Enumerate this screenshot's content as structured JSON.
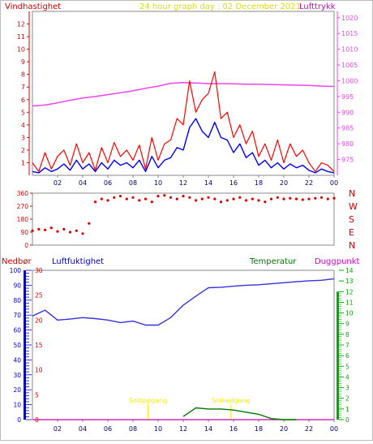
{
  "colors": {
    "wind": "#dd0000",
    "wind_gust": "#ff0000",
    "wind_avg": "#0000ee",
    "pressure": "#ee44ee",
    "direction": "#dd0000",
    "title": "#dddd00",
    "humidity": "#3333dd",
    "temperature": "#007700",
    "dewpoint": "#cc00cc",
    "precip": "#cc0000",
    "sun": "#eeee00",
    "precip_axis": "#0000dd",
    "temp_axis": "#00aa00",
    "frame": "#888888",
    "tick_text": "#000066",
    "direction_text": "#cc0000"
  },
  "header": {
    "wind_label": "Vindhastighet",
    "title": "24 hour graph day : 02 December 2021",
    "pressure_label": "Lufttrykk"
  },
  "lower_header": {
    "precip_label": "Nedbør",
    "humidity_label": "Luftfuktighet",
    "temperature_label": "Temperatur",
    "dewpoint_label": "Duggpunkt"
  },
  "chart_data": [
    {
      "type": "line",
      "panel": "wind_pressure",
      "x_ticks": [
        "02",
        "04",
        "06",
        "08",
        "10",
        "12",
        "14",
        "16",
        "18",
        "20",
        "22",
        "00"
      ],
      "x_range_hours": [
        0,
        24
      ],
      "y_left": {
        "label": "Vindhastighet",
        "ylim": [
          0,
          13
        ],
        "ticks": [
          1,
          2,
          3,
          4,
          5,
          6,
          7,
          8,
          9,
          10,
          11,
          12
        ]
      },
      "y_right": {
        "label": "Lufttrykk",
        "ylim": [
          970,
          1022
        ],
        "ticks": [
          975,
          980,
          985,
          990,
          995,
          1000,
          1005,
          1010,
          1015,
          1020
        ]
      },
      "series": [
        {
          "role": "gust",
          "x": [
            0,
            0.5,
            1,
            1.5,
            2,
            2.5,
            3,
            3.5,
            4,
            4.5,
            5,
            5.5,
            6,
            6.5,
            7,
            7.5,
            8,
            8.5,
            9,
            9.5,
            10,
            10.5,
            11,
            11.5,
            12,
            12.5,
            13,
            13.5,
            14,
            14.5,
            15,
            15.5,
            16,
            16.5,
            17,
            17.5,
            18,
            18.5,
            19,
            19.5,
            20,
            20.5,
            21,
            21.5,
            22,
            22.5,
            23,
            23.5,
            24
          ],
          "values": [
            1.0,
            0.3,
            1.8,
            0.5,
            1.5,
            2.0,
            0.8,
            2.5,
            1.0,
            1.8,
            0.4,
            2.2,
            1.0,
            2.6,
            1.5,
            2.0,
            1.2,
            2.4,
            0.5,
            3.0,
            1.2,
            2.5,
            2.8,
            4.5,
            4.0,
            7.5,
            5.0,
            6.0,
            6.5,
            8.2,
            4.5,
            5.0,
            3.0,
            4.0,
            2.5,
            3.5,
            1.5,
            2.5,
            1.2,
            2.8,
            1.0,
            2.5,
            1.5,
            2.0,
            1.0,
            0.3,
            1.0,
            0.8,
            0.3
          ]
        },
        {
          "role": "average",
          "x": [
            0,
            0.5,
            1,
            1.5,
            2,
            2.5,
            3,
            3.5,
            4,
            4.5,
            5,
            5.5,
            6,
            6.5,
            7,
            7.5,
            8,
            8.5,
            9,
            9.5,
            10,
            10.5,
            11,
            11.5,
            12,
            12.5,
            13,
            13.5,
            14,
            14.5,
            15,
            15.5,
            16,
            16.5,
            17,
            17.5,
            18,
            18.5,
            19,
            19.5,
            20,
            20.5,
            21,
            21.5,
            22,
            22.5,
            23,
            23.5,
            24
          ],
          "values": [
            0.3,
            0.2,
            0.6,
            0.3,
            0.5,
            0.9,
            0.4,
            1.2,
            0.5,
            0.9,
            0.3,
            1.0,
            0.5,
            1.2,
            0.8,
            1.0,
            0.6,
            1.2,
            0.3,
            1.5,
            0.6,
            1.2,
            1.4,
            2.2,
            2.0,
            3.8,
            4.5,
            3.5,
            3.0,
            4.2,
            3.0,
            2.8,
            1.8,
            2.5,
            1.4,
            1.8,
            0.8,
            1.2,
            0.6,
            1.0,
            0.5,
            0.9,
            0.6,
            0.8,
            0.4,
            0.2,
            0.5,
            0.3,
            0.2
          ]
        },
        {
          "role": "pressure",
          "x": [
            0,
            1,
            2,
            3,
            4,
            5,
            6,
            7,
            8,
            9,
            10,
            11,
            12,
            13,
            14,
            15,
            16,
            17,
            18,
            19,
            20,
            21,
            22,
            23,
            24
          ],
          "values": [
            992.0,
            992.3,
            993.0,
            993.8,
            994.5,
            995.0,
            995.6,
            996.2,
            996.8,
            997.6,
            998.3,
            999.2,
            999.4,
            999.3,
            999.1,
            999.1,
            999.0,
            998.9,
            998.9,
            998.8,
            998.7,
            998.6,
            998.5,
            998.3,
            998.2
          ]
        }
      ]
    },
    {
      "type": "scatter",
      "panel": "wind_direction",
      "x_range_hours": [
        0,
        24
      ],
      "y_left": {
        "ylim": [
          0,
          360
        ],
        "ticks": [
          0,
          90,
          180,
          270,
          360
        ]
      },
      "y_right_labels": [
        "N",
        "W",
        "S",
        "E",
        "N"
      ],
      "series": [
        {
          "role": "direction",
          "x": [
            0,
            0.5,
            1,
            1.5,
            2,
            2.5,
            3,
            3.5,
            4,
            4.5,
            5,
            5.5,
            6,
            6.5,
            7,
            7.5,
            8,
            8.5,
            9,
            9.5,
            10,
            10.5,
            11,
            11.5,
            12,
            12.5,
            13,
            13.5,
            14,
            14.5,
            15,
            15.5,
            16,
            16.5,
            17,
            17.5,
            18,
            18.5,
            19,
            19.5,
            20,
            20.5,
            21,
            21.5,
            22,
            22.5,
            23,
            23.5,
            24
          ],
          "values": [
            100,
            110,
            105,
            120,
            95,
            110,
            90,
            100,
            80,
            150,
            300,
            320,
            310,
            330,
            340,
            320,
            330,
            310,
            320,
            300,
            340,
            345,
            330,
            320,
            340,
            330,
            310,
            320,
            330,
            320,
            300,
            310,
            320,
            330,
            310,
            320,
            310,
            300,
            320,
            330,
            320,
            325,
            320,
            315,
            320,
            325,
            330,
            320,
            325
          ]
        }
      ]
    },
    {
      "type": "line",
      "panel": "humidity_temperature",
      "x_ticks": [
        "02",
        "04",
        "06",
        "08",
        "10",
        "12",
        "14",
        "16",
        "18",
        "20",
        "22",
        "00"
      ],
      "x_range_hours": [
        0,
        24
      ],
      "y_left_precip": {
        "label": "Nedbør",
        "ylim": [
          0,
          100
        ],
        "ticks": [
          0,
          10,
          20,
          30,
          40,
          50,
          60,
          70,
          80,
          90,
          100
        ]
      },
      "y_left_humidity": {
        "label": "Luftfuktighet",
        "ylim": [
          0,
          30
        ],
        "ticks": [
          0,
          5,
          10,
          15,
          20,
          25,
          30
        ]
      },
      "y_right_temp": {
        "label": "Temperatur",
        "ylim": [
          0,
          14
        ],
        "ticks": [
          0,
          1,
          2,
          3,
          4,
          5,
          6,
          7,
          8,
          9,
          10,
          11,
          12,
          13,
          14
        ]
      },
      "annotations": [
        "Soloppgang",
        "Solnedgang"
      ],
      "series": [
        {
          "role": "humidity",
          "x": [
            0,
            1,
            2,
            3,
            4,
            5,
            6,
            7,
            8,
            9,
            10,
            11,
            12,
            13,
            14,
            15,
            16,
            17,
            18,
            19,
            20,
            21,
            22,
            23,
            24
          ],
          "values": [
            20.8,
            22.0,
            20.0,
            20.2,
            20.5,
            20.3,
            20.0,
            19.5,
            19.8,
            19.0,
            19.0,
            20.5,
            23.0,
            24.8,
            26.5,
            26.6,
            26.8,
            27.0,
            27.1,
            27.3,
            27.5,
            27.7,
            27.9,
            28.0,
            28.3
          ]
        },
        {
          "role": "temperature",
          "x": [
            12,
            13,
            14,
            15,
            16,
            17,
            18,
            19,
            20,
            21
          ],
          "values": [
            0.3,
            1.1,
            1.0,
            1.0,
            0.9,
            0.7,
            0.5,
            0.1,
            0.0,
            0.0
          ]
        },
        {
          "role": "dewpoint",
          "x": [
            0,
            24
          ],
          "values": [
            0,
            0
          ]
        },
        {
          "role": "precip",
          "x": [
            0,
            24
          ],
          "values": [
            0,
            0
          ]
        }
      ]
    }
  ]
}
